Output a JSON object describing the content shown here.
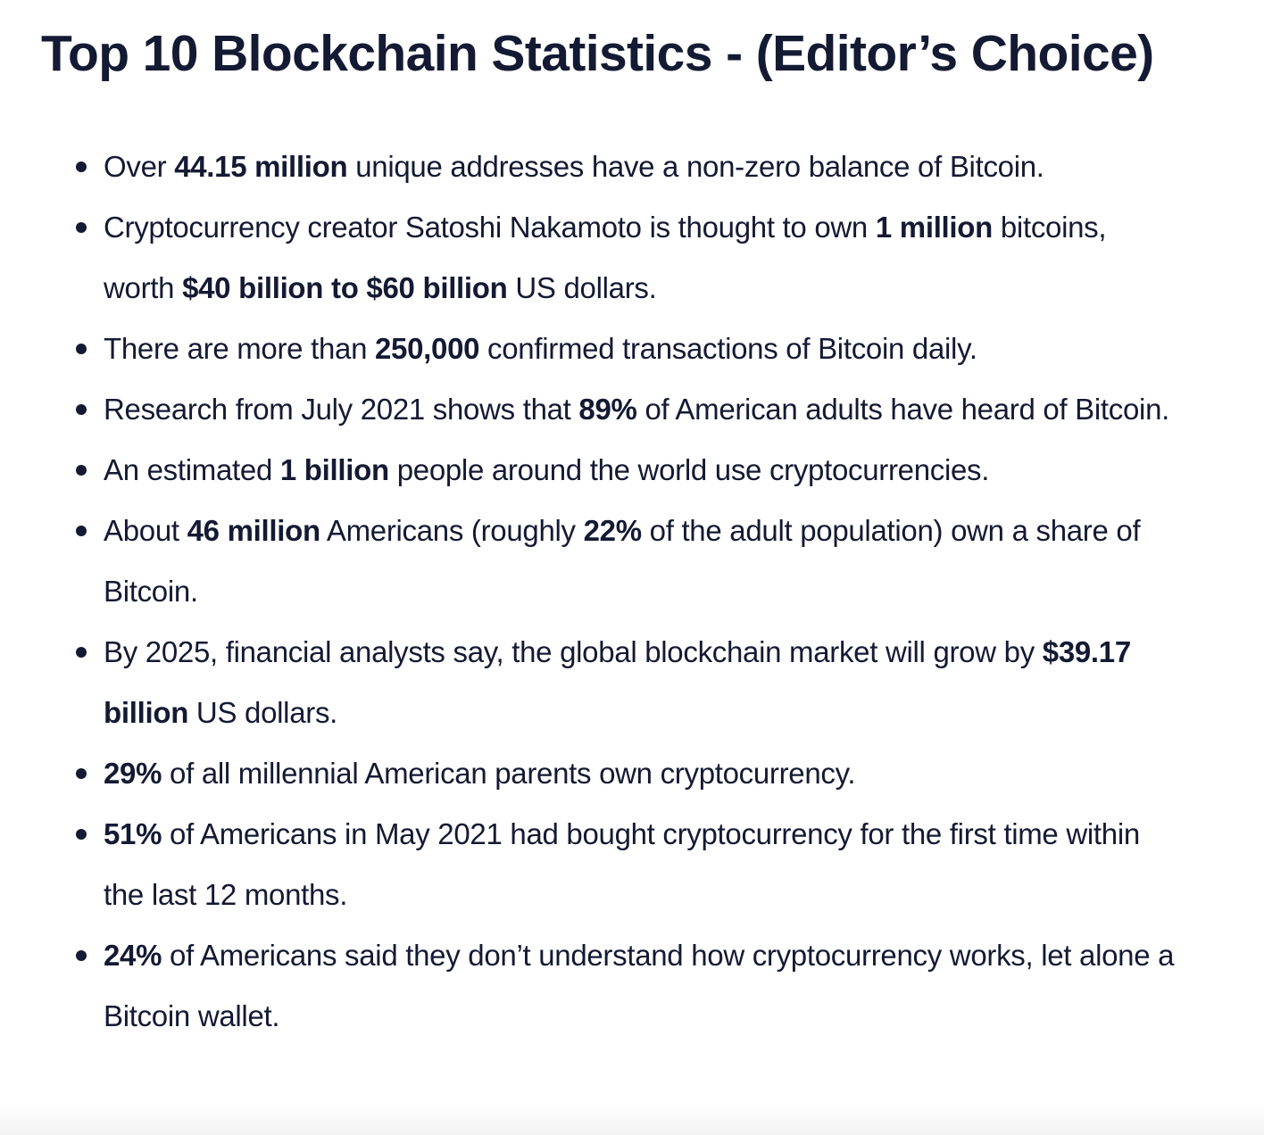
{
  "title": "Top 10 Blockchain Statistics - (Editor’s Choice)",
  "stats": [
    {
      "segments": [
        {
          "text": "Over ",
          "bold": false
        },
        {
          "text": "44.15 million",
          "bold": true
        },
        {
          "text": " unique addresses have a non-zero balance of Bitcoin.",
          "bold": false
        }
      ]
    },
    {
      "segments": [
        {
          "text": "Cryptocurrency creator Satoshi Nakamoto is thought to own ",
          "bold": false
        },
        {
          "text": "1 million",
          "bold": true
        },
        {
          "text": " bitcoins, worth ",
          "bold": false
        },
        {
          "text": "$40 billion to $60 billion",
          "bold": true
        },
        {
          "text": " US dollars.",
          "bold": false
        }
      ]
    },
    {
      "segments": [
        {
          "text": "There are more than ",
          "bold": false
        },
        {
          "text": "250,000",
          "bold": true
        },
        {
          "text": " confirmed transactions of Bitcoin daily.",
          "bold": false
        }
      ]
    },
    {
      "segments": [
        {
          "text": "Research from July 2021 shows that ",
          "bold": false
        },
        {
          "text": "89%",
          "bold": true
        },
        {
          "text": " of American adults have heard of Bitcoin.",
          "bold": false
        }
      ]
    },
    {
      "segments": [
        {
          "text": "An estimated ",
          "bold": false
        },
        {
          "text": "1 billion",
          "bold": true
        },
        {
          "text": " people around the world use cryptocurrencies.",
          "bold": false
        }
      ]
    },
    {
      "segments": [
        {
          "text": "About ",
          "bold": false
        },
        {
          "text": "46 million",
          "bold": true
        },
        {
          "text": " Americans (roughly ",
          "bold": false
        },
        {
          "text": "22%",
          "bold": true
        },
        {
          "text": " of the adult population) own a share of Bitcoin.",
          "bold": false
        }
      ]
    },
    {
      "segments": [
        {
          "text": "By 2025, financial analysts say, the global blockchain market will grow by ",
          "bold": false
        },
        {
          "text": "$39.17 billion",
          "bold": true
        },
        {
          "text": " US dollars.",
          "bold": false
        }
      ]
    },
    {
      "segments": [
        {
          "text": "29%",
          "bold": true
        },
        {
          "text": " of all millennial American parents own cryptocurrency.",
          "bold": false
        }
      ]
    },
    {
      "segments": [
        {
          "text": "51%",
          "bold": true
        },
        {
          "text": " of Americans in May 2021 had bought cryptocurrency for the first time within the last 12 months.",
          "bold": false
        }
      ]
    },
    {
      "segments": [
        {
          "text": "24%",
          "bold": true
        },
        {
          "text": " of Americans said they don’t understand how cryptocurrency works, let alone a Bitcoin wallet.",
          "bold": false
        }
      ]
    }
  ]
}
